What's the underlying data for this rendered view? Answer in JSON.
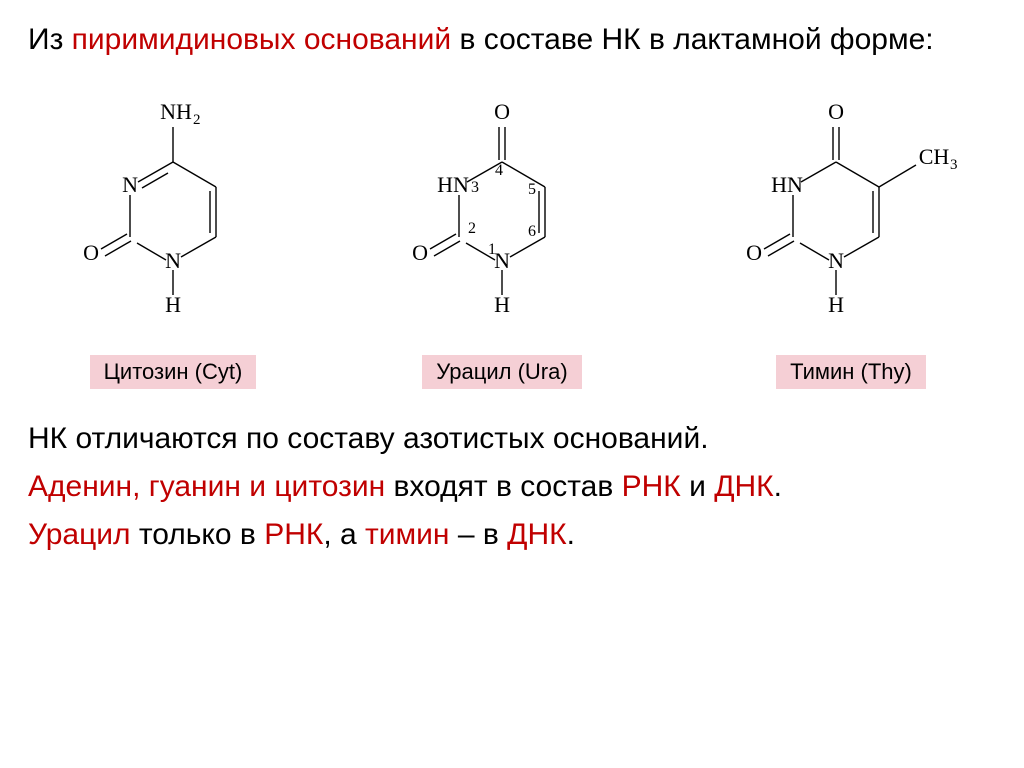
{
  "heading": {
    "part1": "Из ",
    "highlight": "пиримидиновых оснований",
    "part2": " в составе НК в лактамной форме:"
  },
  "molecules": [
    {
      "id": "cytosine",
      "label": "Цитозин (Cyt)",
      "label_bg": "#f5cfd5",
      "label_color": "#000000",
      "substituents": {
        "c4": "NH2",
        "c2": "O",
        "n3": "N"
      },
      "numbers": false
    },
    {
      "id": "uracil",
      "label": "Урацил (Ura)",
      "label_bg": "#f5cfd5",
      "label_color": "#000000",
      "substituents": {
        "c4": "O",
        "c2": "O",
        "n3": "HN"
      },
      "numbers": true
    },
    {
      "id": "thymine",
      "label": "Тимин (Thy)",
      "label_bg": "#f5cfd5",
      "label_color": "#000000",
      "substituents": {
        "c4": "O",
        "c2": "O",
        "n3": "HN",
        "c5": "CH3"
      },
      "numbers": false
    }
  ],
  "body": {
    "line1": "НК отличаются по составу азотистых оснований.",
    "line2_parts": [
      {
        "t": "Аденин, гуанин и цитозин",
        "red": true
      },
      {
        "t": " входят в состав ",
        "red": false
      },
      {
        "t": "РНК",
        "red": true
      },
      {
        "t": " и ",
        "red": false
      },
      {
        "t": "ДНК",
        "red": true
      },
      {
        "t": ".",
        "red": false
      }
    ],
    "line3_parts": [
      {
        "t": "Урацил",
        "red": true
      },
      {
        "t": " только в ",
        "red": false
      },
      {
        "t": "РНК",
        "red": true
      },
      {
        "t": ", а ",
        "red": false
      },
      {
        "t": "тимин",
        "red": true
      },
      {
        "t": " – в ",
        "red": false
      },
      {
        "t": "ДНК",
        "red": true
      },
      {
        "t": ".",
        "red": false
      }
    ]
  },
  "style": {
    "bond_color": "#000000",
    "label_font_size": 22,
    "heading_font_size": 30
  }
}
